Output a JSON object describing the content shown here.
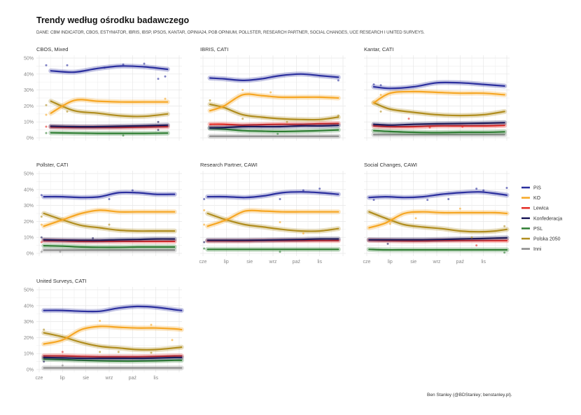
{
  "header": {
    "title": "Trendy według ośrodku badawczego",
    "subtitle": "DANE: CBM INDICATOR, CBOS, ESTYMATOR, IBRIS, IBSP, IPSOS, KANTAR, OPINIA24, PGB OPINIUM, POLLSTER, RESEARCH PARTNER, SOCIAL CHANGES, UCE RESEARCH I UNITED SURVEYS."
  },
  "caption": "Ben Stanley (@BDStanley; benstanley.pl).",
  "chart_data": {
    "type": "line",
    "facet": "small-multiples",
    "ylim": [
      0,
      50
    ],
    "yticks": [
      "0%",
      "10%",
      "20%",
      "30%",
      "40%",
      "50%"
    ],
    "yvalues": [
      0,
      10,
      20,
      30,
      40,
      50
    ],
    "xticks": [
      "cze",
      "lip",
      "sie",
      "wrz",
      "paź",
      "lis"
    ],
    "xlim": [
      0,
      6
    ],
    "grid": true,
    "legend": {
      "position": "right",
      "items": [
        {
          "name": "PiS",
          "color": "#2b2f9e"
        },
        {
          "name": "KO",
          "color": "#f6a623"
        },
        {
          "name": "Lewica",
          "color": "#e42b24"
        },
        {
          "name": "Konfederacja",
          "color": "#1d1b5a"
        },
        {
          "name": "PSL",
          "color": "#2e7d32"
        },
        {
          "name": "Polska 2050",
          "color": "#b08d1e"
        },
        {
          "name": "Inni",
          "color": "#8a8a8a"
        }
      ]
    },
    "panels": [
      {
        "title": "CBOS, Mixed",
        "x": [
          0.5,
          1.5,
          2.5,
          3.5,
          4.5,
          5.5
        ],
        "series": {
          "PiS": [
            42,
            41.2,
            43.5,
            45,
            44.5,
            43
          ],
          "KO": [
            15.5,
            23.5,
            23,
            22.5,
            22.5,
            22.5
          ],
          "Lewica": [
            6.8,
            6.6,
            6.6,
            6.6,
            6.8,
            7
          ],
          "Konfederacja": [
            7.3,
            7,
            7,
            7.3,
            7.6,
            8
          ],
          "PSL": [
            3.2,
            3,
            2.8,
            2.8,
            2.8,
            3
          ],
          "Polska 2050": [
            23,
            17,
            15.5,
            13.8,
            13.5,
            15
          ],
          "Inni": []
        },
        "points": [
          [
            0.3,
            45.5,
            "PiS"
          ],
          [
            1.2,
            45.5,
            "PiS"
          ],
          [
            2.8,
            44,
            "PiS"
          ],
          [
            3.6,
            46,
            "PiS"
          ],
          [
            4.5,
            46.5,
            "PiS"
          ],
          [
            5.1,
            37,
            "PiS"
          ],
          [
            5.4,
            38.5,
            "PiS"
          ],
          [
            0.3,
            20.5,
            "Polska 2050"
          ],
          [
            0.3,
            14.5,
            "KO"
          ],
          [
            1.2,
            16.5,
            "Polska 2050"
          ],
          [
            5.4,
            24.5,
            "KO"
          ],
          [
            5.1,
            10,
            "Konfederacja"
          ],
          [
            0.3,
            7,
            "Lewica"
          ],
          [
            0.3,
            3,
            "PSL"
          ],
          [
            3.6,
            1.5,
            "PSL"
          ],
          [
            5.1,
            5,
            "Konfederacja"
          ]
        ]
      },
      {
        "title": "IBRIS, CATI",
        "x": [
          0.3,
          0.9,
          1.7,
          2.5,
          3.3,
          4.2,
          5.0,
          5.8
        ],
        "series": {
          "PiS": [
            37.5,
            37,
            36,
            37,
            39,
            40,
            39,
            38
          ],
          "KO": [
            17,
            20,
            27,
            26.5,
            25.5,
            25.5,
            25.5,
            25
          ],
          "Lewica": [
            8.5,
            8.5,
            8,
            8.3,
            8.5,
            8.5,
            8.8,
            9
          ],
          "Konfederacja": [
            6.3,
            6.5,
            7,
            7,
            7,
            7.5,
            7.5,
            7.8
          ],
          "PSL": [
            6,
            5.5,
            4.5,
            4.2,
            4,
            4.2,
            4.5,
            5
          ],
          "Polska 2050": [
            21,
            19,
            14.5,
            13,
            12,
            11.5,
            11.5,
            13
          ],
          "Inni": [
            1,
            1,
            1,
            1,
            1,
            1,
            1,
            1
          ]
        },
        "points": [
          [
            1.7,
            30,
            "KO"
          ],
          [
            2.9,
            28.5,
            "KO"
          ],
          [
            0.3,
            23.5,
            "Polska 2050"
          ],
          [
            1.7,
            12,
            "Polska 2050"
          ],
          [
            3.6,
            10,
            "Polska 2050"
          ],
          [
            5.8,
            14,
            "Polska 2050"
          ],
          [
            3.2,
            2.5,
            "PSL"
          ],
          [
            5.8,
            36,
            "PiS"
          ]
        ]
      },
      {
        "title": "Kantar, CATI",
        "x": [
          0.3,
          1.0,
          2.0,
          3.0,
          4.0,
          5.0,
          5.9
        ],
        "series": {
          "PiS": [
            32,
            31,
            32,
            34.5,
            34.5,
            33.5,
            32.5
          ],
          "KO": [
            22,
            28,
            29,
            28.5,
            28,
            28,
            27
          ],
          "Lewica": [
            7.5,
            7,
            7,
            7.5,
            7.5,
            7.5,
            7.8
          ],
          "Konfederacja": [
            8.5,
            8,
            8.5,
            8.8,
            9,
            9.2,
            9.5
          ],
          "PSL": [
            4.5,
            4,
            3.5,
            3.3,
            3.5,
            3.5,
            3.8
          ],
          "Polska 2050": [
            22,
            18,
            16,
            14.5,
            14,
            14.5,
            16.5
          ],
          "Inni": [
            2,
            2,
            2,
            2,
            2,
            2,
            2
          ]
        },
        "points": [
          [
            0.3,
            33.5,
            "PiS"
          ],
          [
            0.6,
            33,
            "PiS"
          ],
          [
            0.6,
            27,
            "KO"
          ],
          [
            0.6,
            16.5,
            "Polska 2050"
          ],
          [
            1.8,
            12,
            "Lewica"
          ],
          [
            2.7,
            6.5,
            "Lewica"
          ],
          [
            4.1,
            7,
            "Lewica"
          ]
        ]
      },
      {
        "title": "Pollster, CATI",
        "x": [
          0.2,
          1.0,
          1.8,
          2.6,
          3.4,
          4.2,
          5.0,
          5.8
        ],
        "series": {
          "PiS": [
            35.5,
            35.5,
            35,
            35.5,
            38,
            38,
            37,
            37
          ],
          "KO": [
            17,
            21,
            25,
            27,
            26,
            26,
            26,
            26
          ],
          "Lewica": [
            8,
            7.8,
            7.5,
            7.5,
            7.5,
            7.5,
            7.5,
            7.5
          ],
          "Konfederacja": [
            8.5,
            8.3,
            8.2,
            8.2,
            8.5,
            8.7,
            9,
            9
          ],
          "PSL": [
            4.8,
            4.5,
            4,
            3.8,
            3.8,
            4,
            4,
            4
          ],
          "Polska 2050": [
            25,
            21,
            17.5,
            16,
            14.5,
            14,
            14,
            14
          ],
          "Inni": [
            2,
            2,
            2,
            2,
            2,
            2,
            2,
            2
          ]
        },
        "points": [
          [
            0.1,
            36.5,
            "PiS"
          ],
          [
            3.0,
            34,
            "PiS"
          ],
          [
            4.0,
            39.5,
            "PiS"
          ],
          [
            0.1,
            23,
            "Polska 2050"
          ],
          [
            0.1,
            18,
            "KO"
          ],
          [
            3.0,
            18,
            "Polska 2050"
          ],
          [
            0.1,
            10,
            "Konfederacja"
          ],
          [
            2.3,
            9.5,
            "Konfederacja"
          ],
          [
            0.1,
            1,
            "Inni"
          ],
          [
            0.9,
            1,
            "Inni"
          ],
          [
            0.1,
            7,
            "Lewica"
          ]
        ]
      },
      {
        "title": "Research Partner, CAWI",
        "x": [
          0.2,
          1.0,
          1.8,
          2.6,
          3.4,
          4.2,
          5.0,
          5.8
        ],
        "series": {
          "PiS": [
            35.5,
            35.5,
            35,
            36,
            38,
            38.5,
            38,
            37
          ],
          "KO": [
            17,
            21,
            26.5,
            26.5,
            26,
            26,
            26,
            26
          ],
          "Lewica": [
            7.8,
            7.8,
            7.8,
            8,
            8,
            8,
            8,
            8
          ],
          "Konfederacja": [
            8.2,
            8.2,
            8.2,
            8.3,
            8.5,
            8.7,
            9,
            9
          ],
          "PSL": [
            2.5,
            2.5,
            2.5,
            2.5,
            2.5,
            2.5,
            2.5,
            2.5
          ],
          "Polska 2050": [
            25,
            21,
            18,
            16.5,
            15,
            14,
            14,
            15.5
          ],
          "Inni": []
        },
        "points": [
          [
            0.05,
            34,
            "PiS"
          ],
          [
            3.3,
            34,
            "PiS"
          ],
          [
            4.3,
            39.5,
            "PiS"
          ],
          [
            5.0,
            40.5,
            "PiS"
          ],
          [
            0.05,
            27,
            "KO"
          ],
          [
            0.05,
            18,
            "KO"
          ],
          [
            3.3,
            19.5,
            "KO"
          ],
          [
            4.3,
            12.5,
            "KO"
          ],
          [
            0.05,
            7,
            "Konfederacja"
          ],
          [
            0.05,
            3,
            "PSL"
          ],
          [
            3.3,
            1,
            "PSL"
          ]
        ]
      },
      {
        "title": "Social Changes, CAWI",
        "x": [
          0.1,
          0.8,
          1.6,
          2.4,
          3.2,
          4.0,
          4.8,
          5.5,
          6.0
        ],
        "series": {
          "PiS": [
            35,
            35.5,
            35,
            35.5,
            37,
            38,
            38.5,
            37.5,
            36.5
          ],
          "KO": [
            16,
            19,
            25,
            26,
            25.5,
            25.5,
            25.5,
            25.5,
            25
          ],
          "Lewica": [
            8.2,
            8,
            7.8,
            7.8,
            8,
            8,
            8,
            8,
            8
          ],
          "Konfederacja": [
            8.5,
            8.5,
            8.5,
            8.5,
            8.7,
            9,
            9.2,
            9.5,
            9.7
          ],
          "PSL": [
            2.5,
            2.2,
            2.2,
            2.2,
            2.2,
            2.2,
            2.2,
            2.2,
            2.2
          ],
          "Polska 2050": [
            26,
            22,
            18,
            16.5,
            15.5,
            14,
            13.5,
            14,
            15
          ],
          "Inni": []
        },
        "points": [
          [
            0.3,
            33.5,
            "PiS"
          ],
          [
            2.6,
            33.5,
            "PiS"
          ],
          [
            3.5,
            34,
            "PiS"
          ],
          [
            4.7,
            40.5,
            "PiS"
          ],
          [
            5.0,
            39.5,
            "PiS"
          ],
          [
            6.0,
            41,
            "PiS"
          ],
          [
            1.0,
            18.5,
            "KO"
          ],
          [
            4.0,
            28,
            "KO"
          ],
          [
            5.9,
            17,
            "Polska 2050"
          ],
          [
            2.1,
            22,
            "KO"
          ],
          [
            4.5,
            10,
            "Polska 2050"
          ],
          [
            0.9,
            6,
            "Konfederacja"
          ],
          [
            4.7,
            5,
            "Lewica"
          ],
          [
            5.9,
            0.5,
            "PSL"
          ]
        ]
      },
      {
        "title": "United Surveys, CATI",
        "x": [
          0.2,
          1.0,
          1.8,
          2.6,
          3.4,
          4.2,
          5.0,
          5.8,
          6.1
        ],
        "series": {
          "PiS": [
            37,
            37,
            36.5,
            36.5,
            38.5,
            39.5,
            39,
            37.5,
            37
          ],
          "KO": [
            16,
            18.5,
            25,
            27,
            26.5,
            26,
            26,
            25.5,
            25
          ],
          "Lewica": [
            8.5,
            8.5,
            8.2,
            8,
            8,
            8,
            8.2,
            8.5,
            8.5
          ],
          "Konfederacja": [
            7.5,
            7.3,
            7,
            7,
            7,
            7,
            7.2,
            7.5,
            7.5
          ],
          "PSL": [
            6.5,
            6.2,
            5.8,
            5.5,
            5.3,
            5.3,
            5.5,
            5.8,
            5.8
          ],
          "Polska 2050": [
            23,
            20.5,
            17,
            14.5,
            13.5,
            12.5,
            12.5,
            13.5,
            14
          ],
          "Inni": [
            1,
            1,
            1,
            1,
            1,
            1,
            1,
            1,
            1
          ]
        },
        "points": [
          [
            0.2,
            25,
            "Polska 2050"
          ],
          [
            2.6,
            30.5,
            "KO"
          ],
          [
            4.8,
            28,
            "KO"
          ],
          [
            5.7,
            18.5,
            "KO"
          ],
          [
            1.0,
            11,
            "Lewica"
          ],
          [
            2.6,
            11,
            "Polska 2050"
          ],
          [
            3.4,
            11,
            "Polska 2050"
          ],
          [
            0.2,
            5,
            "Konfederacja"
          ],
          [
            1.0,
            2.5,
            "Inni"
          ],
          [
            4.8,
            10.5,
            "Polska 2050"
          ]
        ]
      }
    ]
  }
}
